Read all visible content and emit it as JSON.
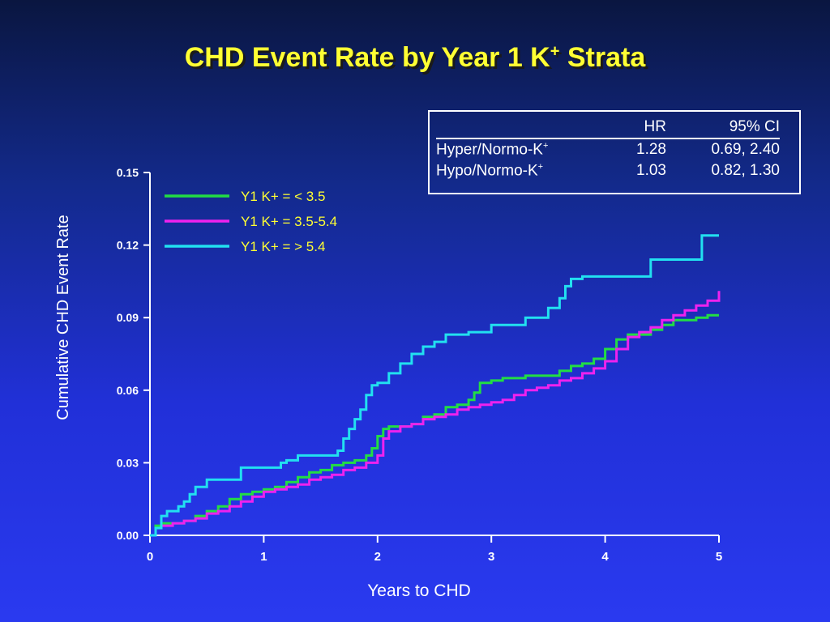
{
  "title": {
    "main": "CHD Event Rate by Year 1 K",
    "superscript": "+",
    "suffix": " Strata"
  },
  "hr_table": {
    "headers": [
      "",
      "HR",
      "95% CI"
    ],
    "rows": [
      {
        "label": "Hyper/Normo-K",
        "sup": "+",
        "hr": "1.28",
        "ci": "0.69, 2.40"
      },
      {
        "label": "Hypo/Normo-K",
        "sup": "+",
        "hr": "1.03",
        "ci": "0.82, 1.30"
      }
    ]
  },
  "chart_data": {
    "type": "line",
    "step": true,
    "xlabel": "Years to CHD",
    "ylabel": "Cumulative CHD Event Rate",
    "xlim": [
      0,
      5
    ],
    "ylim": [
      0,
      0.15
    ],
    "xticks": [
      "0",
      "1",
      "2",
      "3",
      "4",
      "5"
    ],
    "yticks": [
      "0.00",
      "0.03",
      "0.06",
      "0.09",
      "0.12",
      "0.15"
    ],
    "legend_position": "top-left",
    "grid": false,
    "series": [
      {
        "name": "Y1 K+ = < 3.5",
        "color": "#22dd44",
        "x": [
          0.0,
          0.05,
          0.1,
          0.2,
          0.3,
          0.4,
          0.5,
          0.6,
          0.7,
          0.8,
          0.9,
          1.0,
          1.1,
          1.2,
          1.3,
          1.4,
          1.5,
          1.6,
          1.7,
          1.8,
          1.9,
          1.95,
          2.0,
          2.05,
          2.1,
          2.2,
          2.3,
          2.4,
          2.5,
          2.6,
          2.7,
          2.8,
          2.85,
          2.9,
          3.0,
          3.1,
          3.2,
          3.3,
          3.4,
          3.5,
          3.6,
          3.7,
          3.8,
          3.9,
          4.0,
          4.1,
          4.2,
          4.3,
          4.4,
          4.5,
          4.6,
          4.7,
          4.8,
          4.9,
          5.0
        ],
        "y": [
          0.0,
          0.004,
          0.005,
          0.005,
          0.006,
          0.008,
          0.01,
          0.012,
          0.015,
          0.017,
          0.018,
          0.019,
          0.02,
          0.022,
          0.024,
          0.026,
          0.027,
          0.029,
          0.03,
          0.031,
          0.033,
          0.036,
          0.041,
          0.044,
          0.045,
          0.045,
          0.046,
          0.049,
          0.05,
          0.053,
          0.054,
          0.056,
          0.059,
          0.063,
          0.064,
          0.065,
          0.065,
          0.066,
          0.066,
          0.066,
          0.068,
          0.07,
          0.071,
          0.073,
          0.077,
          0.081,
          0.083,
          0.083,
          0.085,
          0.087,
          0.089,
          0.089,
          0.09,
          0.091,
          0.091
        ]
      },
      {
        "name": "Y1 K+ = 3.5-5.4",
        "color": "#ee22ee",
        "x": [
          0.0,
          0.05,
          0.1,
          0.2,
          0.3,
          0.4,
          0.5,
          0.6,
          0.7,
          0.8,
          0.9,
          1.0,
          1.1,
          1.2,
          1.3,
          1.4,
          1.5,
          1.6,
          1.7,
          1.8,
          1.9,
          2.0,
          2.05,
          2.1,
          2.2,
          2.3,
          2.4,
          2.5,
          2.6,
          2.7,
          2.8,
          2.9,
          3.0,
          3.1,
          3.2,
          3.3,
          3.4,
          3.5,
          3.6,
          3.7,
          3.8,
          3.9,
          4.0,
          4.1,
          4.2,
          4.3,
          4.4,
          4.5,
          4.6,
          4.7,
          4.8,
          4.9,
          5.0
        ],
        "y": [
          0.0,
          0.003,
          0.004,
          0.005,
          0.006,
          0.007,
          0.009,
          0.01,
          0.012,
          0.014,
          0.016,
          0.018,
          0.019,
          0.02,
          0.021,
          0.023,
          0.024,
          0.025,
          0.027,
          0.028,
          0.03,
          0.033,
          0.04,
          0.043,
          0.045,
          0.046,
          0.048,
          0.049,
          0.05,
          0.052,
          0.053,
          0.054,
          0.055,
          0.056,
          0.058,
          0.06,
          0.061,
          0.062,
          0.064,
          0.065,
          0.067,
          0.069,
          0.072,
          0.077,
          0.082,
          0.084,
          0.086,
          0.089,
          0.091,
          0.093,
          0.095,
          0.097,
          0.101
        ]
      },
      {
        "name": "Y1 K+ = > 5.4",
        "color": "#22e0f0",
        "x": [
          0.0,
          0.05,
          0.1,
          0.15,
          0.25,
          0.3,
          0.35,
          0.4,
          0.5,
          0.8,
          1.0,
          1.15,
          1.2,
          1.3,
          1.5,
          1.65,
          1.7,
          1.75,
          1.8,
          1.85,
          1.9,
          1.95,
          2.0,
          2.1,
          2.2,
          2.3,
          2.4,
          2.5,
          2.6,
          2.8,
          3.0,
          3.1,
          3.3,
          3.5,
          3.6,
          3.65,
          3.7,
          3.8,
          4.0,
          4.2,
          4.4,
          4.6,
          4.8,
          4.85,
          5.0
        ],
        "y": [
          0.0,
          0.003,
          0.008,
          0.01,
          0.012,
          0.014,
          0.017,
          0.02,
          0.023,
          0.028,
          0.028,
          0.03,
          0.031,
          0.033,
          0.033,
          0.035,
          0.04,
          0.044,
          0.048,
          0.052,
          0.058,
          0.062,
          0.063,
          0.067,
          0.071,
          0.075,
          0.078,
          0.08,
          0.083,
          0.084,
          0.087,
          0.087,
          0.09,
          0.094,
          0.098,
          0.103,
          0.106,
          0.107,
          0.107,
          0.107,
          0.114,
          0.114,
          0.114,
          0.124,
          0.124
        ]
      }
    ]
  }
}
